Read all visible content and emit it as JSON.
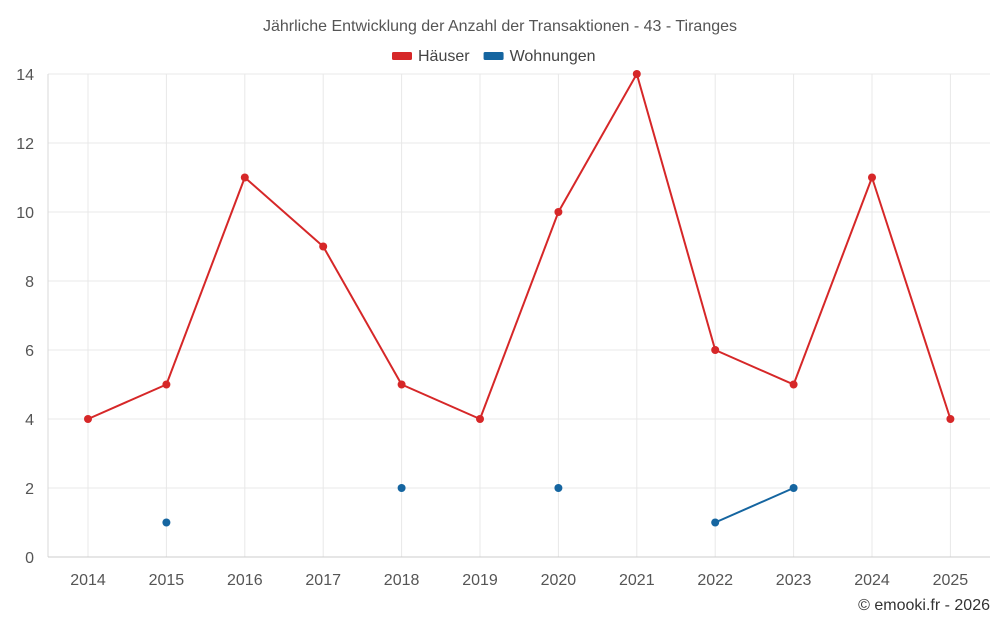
{
  "chart_data": {
    "type": "line",
    "title": "Jährliche Entwicklung der Anzahl der Transaktionen - 43 - Tiranges",
    "xlabel": "",
    "ylabel": "",
    "categories": [
      "2014",
      "2015",
      "2016",
      "2017",
      "2018",
      "2019",
      "2020",
      "2021",
      "2022",
      "2023",
      "2024",
      "2025"
    ],
    "ylim": [
      0,
      14
    ],
    "yticks": [
      0,
      2,
      4,
      6,
      8,
      10,
      12,
      14
    ],
    "grid": true,
    "legend_position": "top-center",
    "series": [
      {
        "name": "Häuser",
        "color": "#d62728",
        "values": [
          4,
          5,
          11,
          9,
          5,
          4,
          10,
          14,
          6,
          5,
          11,
          4
        ]
      },
      {
        "name": "Wohnungen",
        "color": "#1565a0",
        "values": [
          null,
          1,
          null,
          null,
          2,
          null,
          2,
          null,
          1,
          2,
          null,
          null
        ]
      }
    ]
  },
  "credit": "© emooki.fr - 2026"
}
